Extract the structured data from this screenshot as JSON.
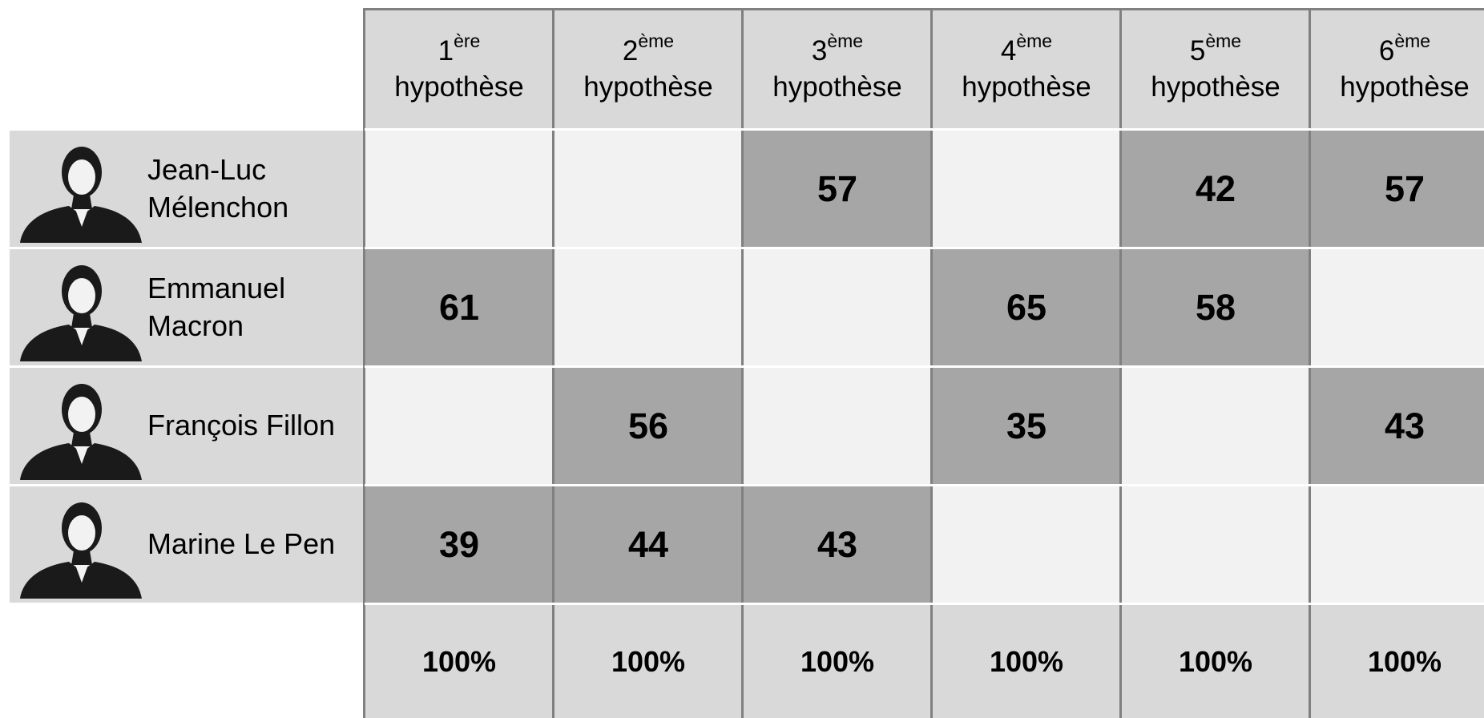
{
  "table": {
    "columns": [
      {
        "number": "1",
        "suffix": "ère",
        "word": "hypothèse"
      },
      {
        "number": "2",
        "suffix": "ème",
        "word": "hypothèse"
      },
      {
        "number": "3",
        "suffix": "ème",
        "word": "hypothèse"
      },
      {
        "number": "4",
        "suffix": "ème",
        "word": "hypothèse"
      },
      {
        "number": "5",
        "suffix": "ème",
        "word": "hypothèse"
      },
      {
        "number": "6",
        "suffix": "ème",
        "word": "hypothèse"
      }
    ],
    "rows": [
      {
        "name": [
          "Jean-Luc",
          "Mélenchon"
        ],
        "cells": [
          null,
          null,
          57,
          null,
          42,
          57
        ]
      },
      {
        "name": [
          "Emmanuel",
          "Macron"
        ],
        "cells": [
          61,
          null,
          null,
          65,
          58,
          null
        ]
      },
      {
        "name": [
          "François Fillon"
        ],
        "cells": [
          null,
          56,
          null,
          35,
          null,
          43
        ]
      },
      {
        "name": [
          "Marine Le Pen"
        ],
        "cells": [
          39,
          44,
          43,
          null,
          null,
          null
        ]
      }
    ],
    "totals": [
      "100%",
      "100%",
      "100%",
      "100%",
      "100%",
      "100%"
    ]
  }
}
